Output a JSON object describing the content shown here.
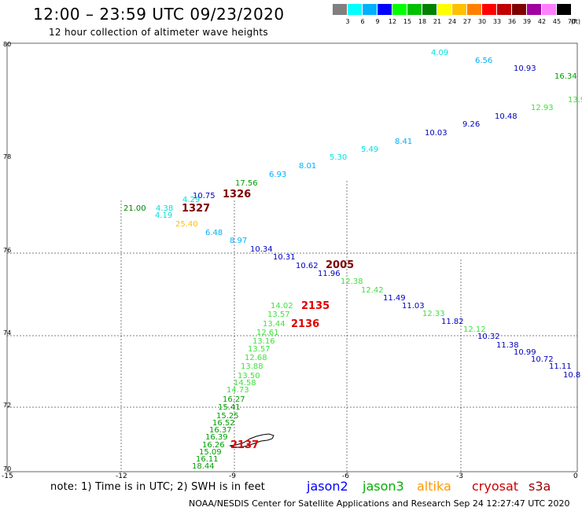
{
  "header": {
    "title": "12:00 – 23:59 UTC 09/23/2020",
    "subtitle": "12 hour collection of altimeter wave heights"
  },
  "color_scale": {
    "unit": "(ft)",
    "bins": [
      {
        "label": "3",
        "color": "#808080"
      },
      {
        "label": "6",
        "color": "#00ffff"
      },
      {
        "label": "9",
        "color": "#00b0ff"
      },
      {
        "label": "12",
        "color": "#0000ff"
      },
      {
        "label": "15",
        "color": "#00ff00"
      },
      {
        "label": "18",
        "color": "#00c000"
      },
      {
        "label": "21",
        "color": "#008000"
      },
      {
        "label": "24",
        "color": "#ffff00"
      },
      {
        "label": "27",
        "color": "#ffc000"
      },
      {
        "label": "30",
        "color": "#ff8000"
      },
      {
        "label": "33",
        "color": "#ff0000"
      },
      {
        "label": "36",
        "color": "#c00000"
      },
      {
        "label": "39",
        "color": "#800000"
      },
      {
        "label": "42",
        "color": "#a000a0"
      },
      {
        "label": "45",
        "color": "#ff80ff"
      },
      {
        "label": "70",
        "color": "#000000"
      }
    ]
  },
  "map": {
    "lat_labels": [
      "80",
      "78",
      "76",
      "74",
      "72",
      "70"
    ],
    "lon_labels": [
      "-15",
      "-12",
      "-9",
      "-6",
      "-3",
      "0"
    ],
    "observations": [
      {
        "label": "4.09",
        "color": "#00e0e0"
      },
      {
        "label": "6.56",
        "color": "#00b0ff"
      },
      {
        "label": "10.93",
        "color": "#0000c0"
      },
      {
        "label": "16.34",
        "color": "#00a000"
      },
      {
        "label": "12.93",
        "color": "#40e040"
      },
      {
        "label": "13.9",
        "color": "#40e040"
      },
      {
        "label": "10.48",
        "color": "#0000c0"
      },
      {
        "label": "9.26",
        "color": "#0000c0"
      },
      {
        "label": "10.03",
        "color": "#0000c0"
      },
      {
        "label": "8.41",
        "color": "#00b0ff"
      },
      {
        "label": "5.49",
        "color": "#00e0e0"
      },
      {
        "label": "5.30",
        "color": "#00e0e0"
      },
      {
        "label": "8.01",
        "color": "#00b0ff"
      },
      {
        "label": "6.93",
        "color": "#00b0ff"
      },
      {
        "label": "17.56",
        "color": "#00a000"
      },
      {
        "label": "10.75",
        "color": "#0000c0"
      },
      {
        "label": "4.29",
        "color": "#00e0e0"
      },
      {
        "label": "21.00",
        "color": "#008000"
      },
      {
        "label": "4.38",
        "color": "#00e0e0"
      },
      {
        "label": "4.19",
        "color": "#00e0e0"
      },
      {
        "label": "25.40",
        "color": "#ffc000"
      },
      {
        "label": "6.48",
        "color": "#00b0ff"
      },
      {
        "label": "8.97",
        "color": "#00b0ff"
      },
      {
        "label": "10.34",
        "color": "#0000c0"
      },
      {
        "label": "10.31",
        "color": "#0000c0"
      },
      {
        "label": "10.62",
        "color": "#0000c0"
      },
      {
        "label": "11.96",
        "color": "#0000c0"
      },
      {
        "label": "12.38",
        "color": "#40e040"
      },
      {
        "label": "12.42",
        "color": "#40e040"
      },
      {
        "label": "11.49",
        "color": "#0000c0"
      },
      {
        "label": "11.03",
        "color": "#0000c0"
      },
      {
        "label": "12.33",
        "color": "#40e040"
      },
      {
        "label": "11.82",
        "color": "#0000c0"
      },
      {
        "label": "12.12",
        "color": "#40e040"
      },
      {
        "label": "10.32",
        "color": "#0000c0"
      },
      {
        "label": "11.38",
        "color": "#0000c0"
      },
      {
        "label": "10.99",
        "color": "#0000c0"
      },
      {
        "label": "10.72",
        "color": "#0000c0"
      },
      {
        "label": "11.11",
        "color": "#0000c0"
      },
      {
        "label": "10.8",
        "color": "#0000c0"
      },
      {
        "label": "14.02",
        "color": "#40e040"
      },
      {
        "label": "13.57",
        "color": "#40e040"
      },
      {
        "label": "13.44",
        "color": "#40e040"
      },
      {
        "label": "12.61",
        "color": "#40e040"
      },
      {
        "label": "13.16",
        "color": "#40e040"
      },
      {
        "label": "13.57",
        "color": "#40e040"
      },
      {
        "label": "12.68",
        "color": "#40e040"
      },
      {
        "label": "13.88",
        "color": "#40e040"
      },
      {
        "label": "13.50",
        "color": "#40e040"
      },
      {
        "label": "14.58",
        "color": "#40e040"
      },
      {
        "label": "14.73",
        "color": "#40e040"
      },
      {
        "label": "16.27",
        "color": "#00a000"
      },
      {
        "label": "15.41",
        "color": "#00a000"
      },
      {
        "label": "15.25",
        "color": "#00a000"
      },
      {
        "label": "16.52",
        "color": "#00a000"
      },
      {
        "label": "16.37",
        "color": "#00a000"
      },
      {
        "label": "16.39",
        "color": "#00a000"
      },
      {
        "label": "16.26",
        "color": "#00a000"
      },
      {
        "label": "15.09",
        "color": "#00a000"
      },
      {
        "label": "16.11",
        "color": "#00a000"
      },
      {
        "label": "18.44",
        "color": "#00a000"
      }
    ],
    "time_labels": [
      {
        "label": "1326",
        "color": "#800000"
      },
      {
        "label": "1327",
        "color": "#800000"
      },
      {
        "label": "2005",
        "color": "#800000"
      },
      {
        "label": "2135",
        "color": "#e00000"
      },
      {
        "label": "2136",
        "color": "#e00000"
      },
      {
        "label": "2137",
        "color": "#e00000"
      }
    ],
    "island_name": "jan-mayen-outline"
  },
  "footer": {
    "note": "note: 1) Time is in UTC; 2) SWH is in feet",
    "satellites": [
      {
        "label": "jason2",
        "color": "#0000ff"
      },
      {
        "label": "jason3",
        "color": "#00b000"
      },
      {
        "label": "altika",
        "color": "#ff9900"
      },
      {
        "label": "cryosat",
        "color": "#cc0000"
      },
      {
        "label": "s3a",
        "color": "#990000"
      }
    ],
    "credit": "NOAA/NESDIS Center for Satellite Applications and Research   Sep 24 12:27:47 UTC 2020"
  }
}
